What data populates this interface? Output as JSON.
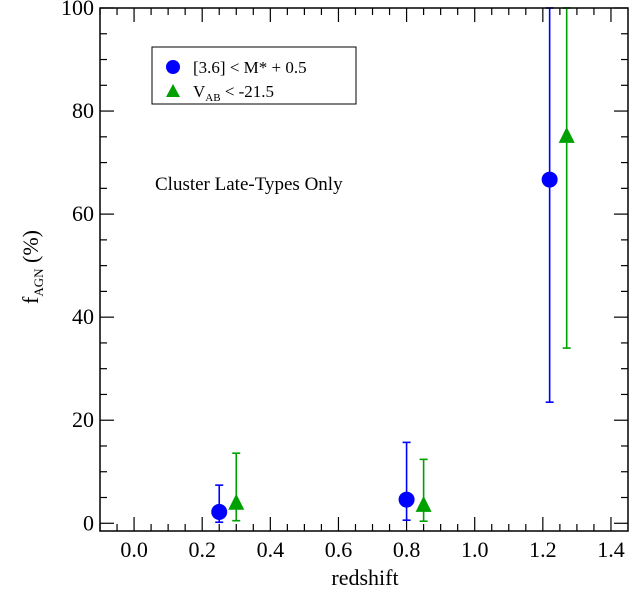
{
  "chart_data": {
    "type": "scatter",
    "xlabel": "redshift",
    "ylabel": {
      "main": "f",
      "sub": "AGN",
      "rest": " (%)"
    },
    "xlim": [
      -0.1,
      1.45
    ],
    "ylim": [
      -1.5,
      100
    ],
    "x_ticks": [
      0.0,
      0.2,
      0.4,
      0.6,
      0.8,
      1.0,
      1.2,
      1.4
    ],
    "x_tick_labels": [
      "0.0",
      "0.2",
      "0.4",
      "0.6",
      "0.8",
      "1.0",
      "1.2",
      "1.4"
    ],
    "y_ticks": [
      0,
      20,
      40,
      60,
      80,
      100
    ],
    "y_tick_labels": [
      "0",
      "20",
      "40",
      "60",
      "80",
      "100"
    ],
    "annotation": "Cluster Late-Types Only",
    "series": [
      {
        "legend": {
          "pre": "[3.6]  <  M* + 0.5"
        },
        "marker": "circle",
        "color": "#0000ff",
        "points": [
          {
            "x": 0.25,
            "y": 2.2,
            "lo": 0.2,
            "hi": 7.4
          },
          {
            "x": 0.8,
            "y": 4.6,
            "lo": 0.6,
            "hi": 15.7
          },
          {
            "x": 1.22,
            "y": 66.7,
            "lo": 23.5,
            "hi": 100
          }
        ]
      },
      {
        "legend": {
          "pre": "V",
          "sub": "AB",
          "post": "  <  -21.5"
        },
        "marker": "triangle",
        "color": "#00a000",
        "points": [
          {
            "x": 0.3,
            "y": 3.8,
            "lo": 0.5,
            "hi": 13.6
          },
          {
            "x": 0.85,
            "y": 3.4,
            "lo": 0.4,
            "hi": 12.4
          },
          {
            "x": 1.27,
            "y": 75.0,
            "lo": 34.0,
            "hi": 100
          }
        ]
      }
    ]
  }
}
